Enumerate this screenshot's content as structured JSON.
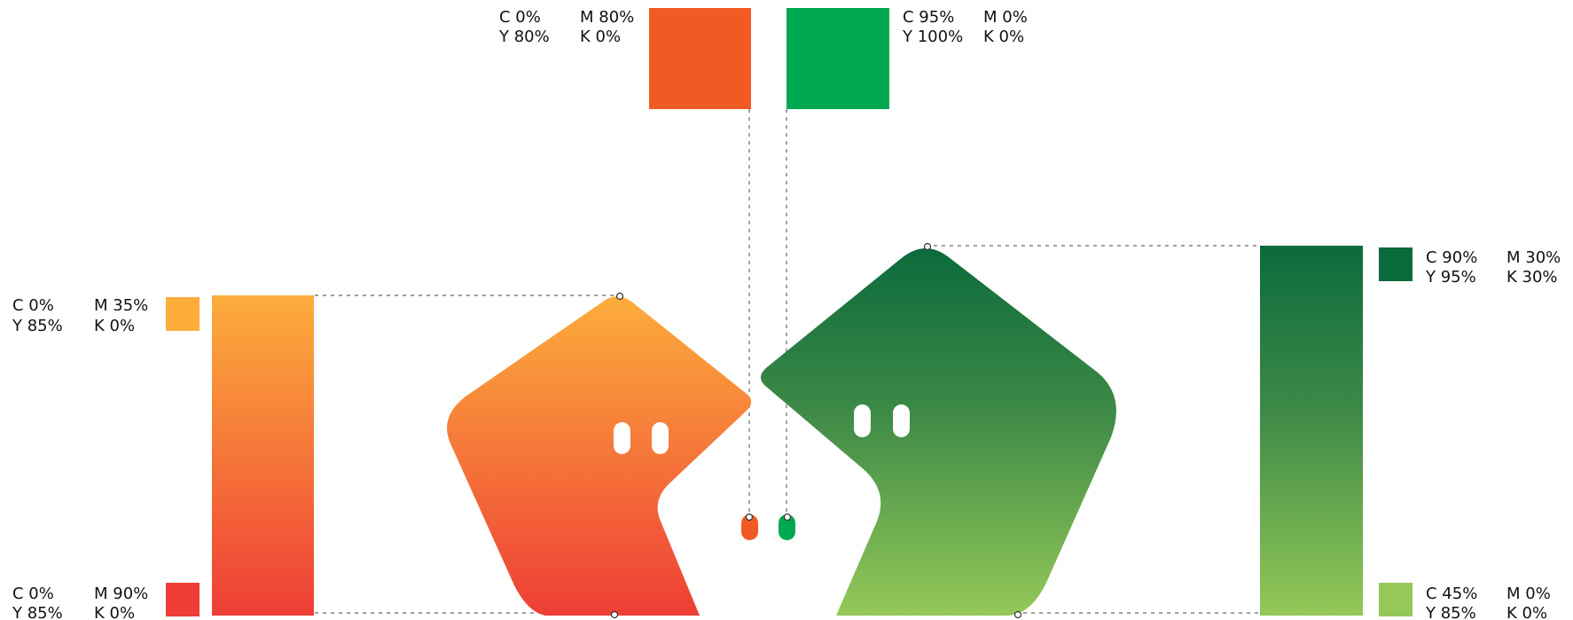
{
  "swatches": {
    "top_orange": {
      "color": "#f25a23",
      "c": "C  0%",
      "m": "M 80%",
      "y": "Y  80%",
      "k": "K  0%"
    },
    "top_green": {
      "color": "#00a84f",
      "c": "C  95%",
      "m": "M 0%",
      "y": "Y  100%",
      "k": "K  0%"
    },
    "light_orange": {
      "color": "#fcad3c",
      "c": "C  0%",
      "m": "M 35%",
      "y": "Y  85%",
      "k": "K  0%"
    },
    "red": {
      "color": "#ee3e36",
      "c": "C  0%",
      "m": "M 90%",
      "y": "Y  85%",
      "k": "K  0%"
    },
    "dark_green": {
      "color": "#0c6b3c",
      "c": "C  90%",
      "m": "M 30%",
      "y": "Y  95%",
      "k": "K  30%"
    },
    "light_green": {
      "color": "#94c958",
      "c": "C  45%",
      "m": "M 0%",
      "y": "Y  85%",
      "k": "K  0%"
    }
  },
  "gradients": {
    "orange_top": "#fcad3c",
    "orange_bottom": "#ee3e36",
    "green_top": "#0c6b3c",
    "green_mid": "#3e8a47",
    "green_bottom": "#94c958"
  },
  "icons": {
    "orange_character": "orange-pentagon-mascot-icon",
    "green_character": "green-pentagon-mascot-icon"
  }
}
